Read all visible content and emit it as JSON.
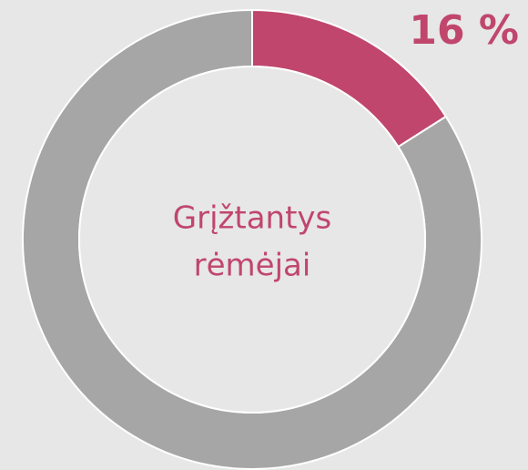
{
  "chart_data": {
    "type": "pie",
    "donut": true,
    "values": [
      16,
      84
    ],
    "value_labels": [
      "16 %",
      null
    ],
    "colors": [
      "#c0466d",
      "#a6a6a6"
    ],
    "center_label": [
      "Grįžtantys",
      "rėmėjai"
    ],
    "label_color": "#c0466d"
  }
}
